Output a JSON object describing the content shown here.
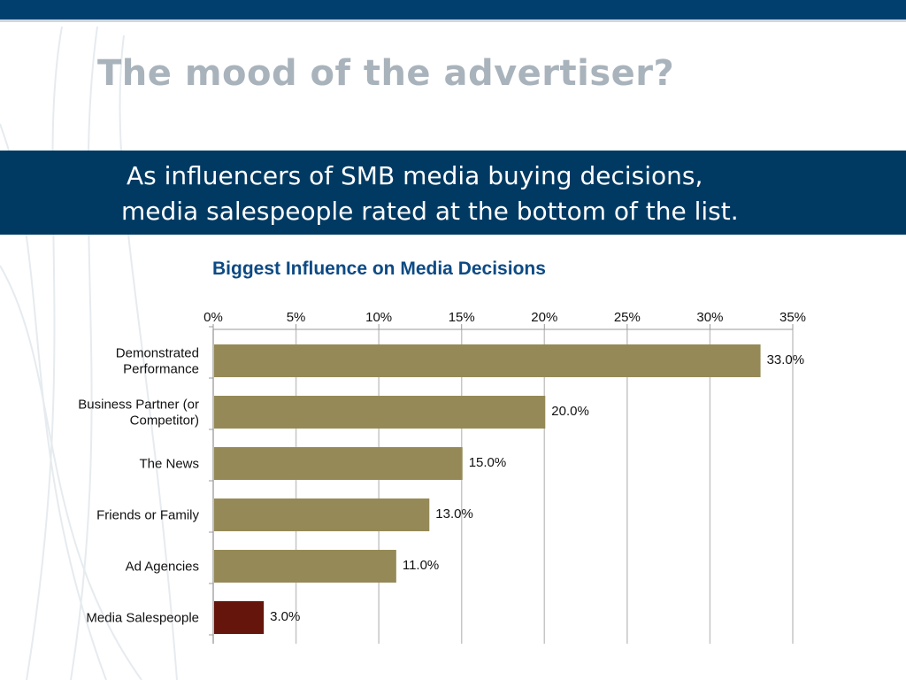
{
  "slide": {
    "title": "The mood of the advertiser?",
    "banner_line1": "As influencers of SMB media buying decisions,",
    "banner_line2": "media salespeople rated at the bottom of the list."
  },
  "colors": {
    "bar_default": "#958a57",
    "bar_highlight": "#65150b",
    "banner": "#003a63",
    "chart_title": "#0d4a84",
    "slide_title": "#a9b3bc"
  },
  "chart_data": {
    "type": "bar",
    "orientation": "horizontal",
    "title": "Biggest Influence on Media Decisions",
    "categories": [
      [
        "Demonstrated",
        "Performance"
      ],
      [
        "Business Partner (or",
        "Competitor)"
      ],
      [
        "The News"
      ],
      [
        "Friends or Family"
      ],
      [
        "Ad Agencies"
      ],
      [
        "Media Salespeople"
      ]
    ],
    "values": [
      33.0,
      20.0,
      15.0,
      13.0,
      11.0,
      3.0
    ],
    "data_labels": [
      "33.0%",
      "20.0%",
      "15.0%",
      "13.0%",
      "11.0%",
      "3.0%"
    ],
    "highlight_index": 5,
    "xlim": [
      0,
      35
    ],
    "x_ticks": [
      0,
      5,
      10,
      15,
      20,
      25,
      30,
      35
    ],
    "x_tick_labels": [
      "0%",
      "5%",
      "10%",
      "15%",
      "20%",
      "25%",
      "30%",
      "35%"
    ],
    "x_axis_position": "top",
    "grid": true,
    "legend": "none"
  }
}
